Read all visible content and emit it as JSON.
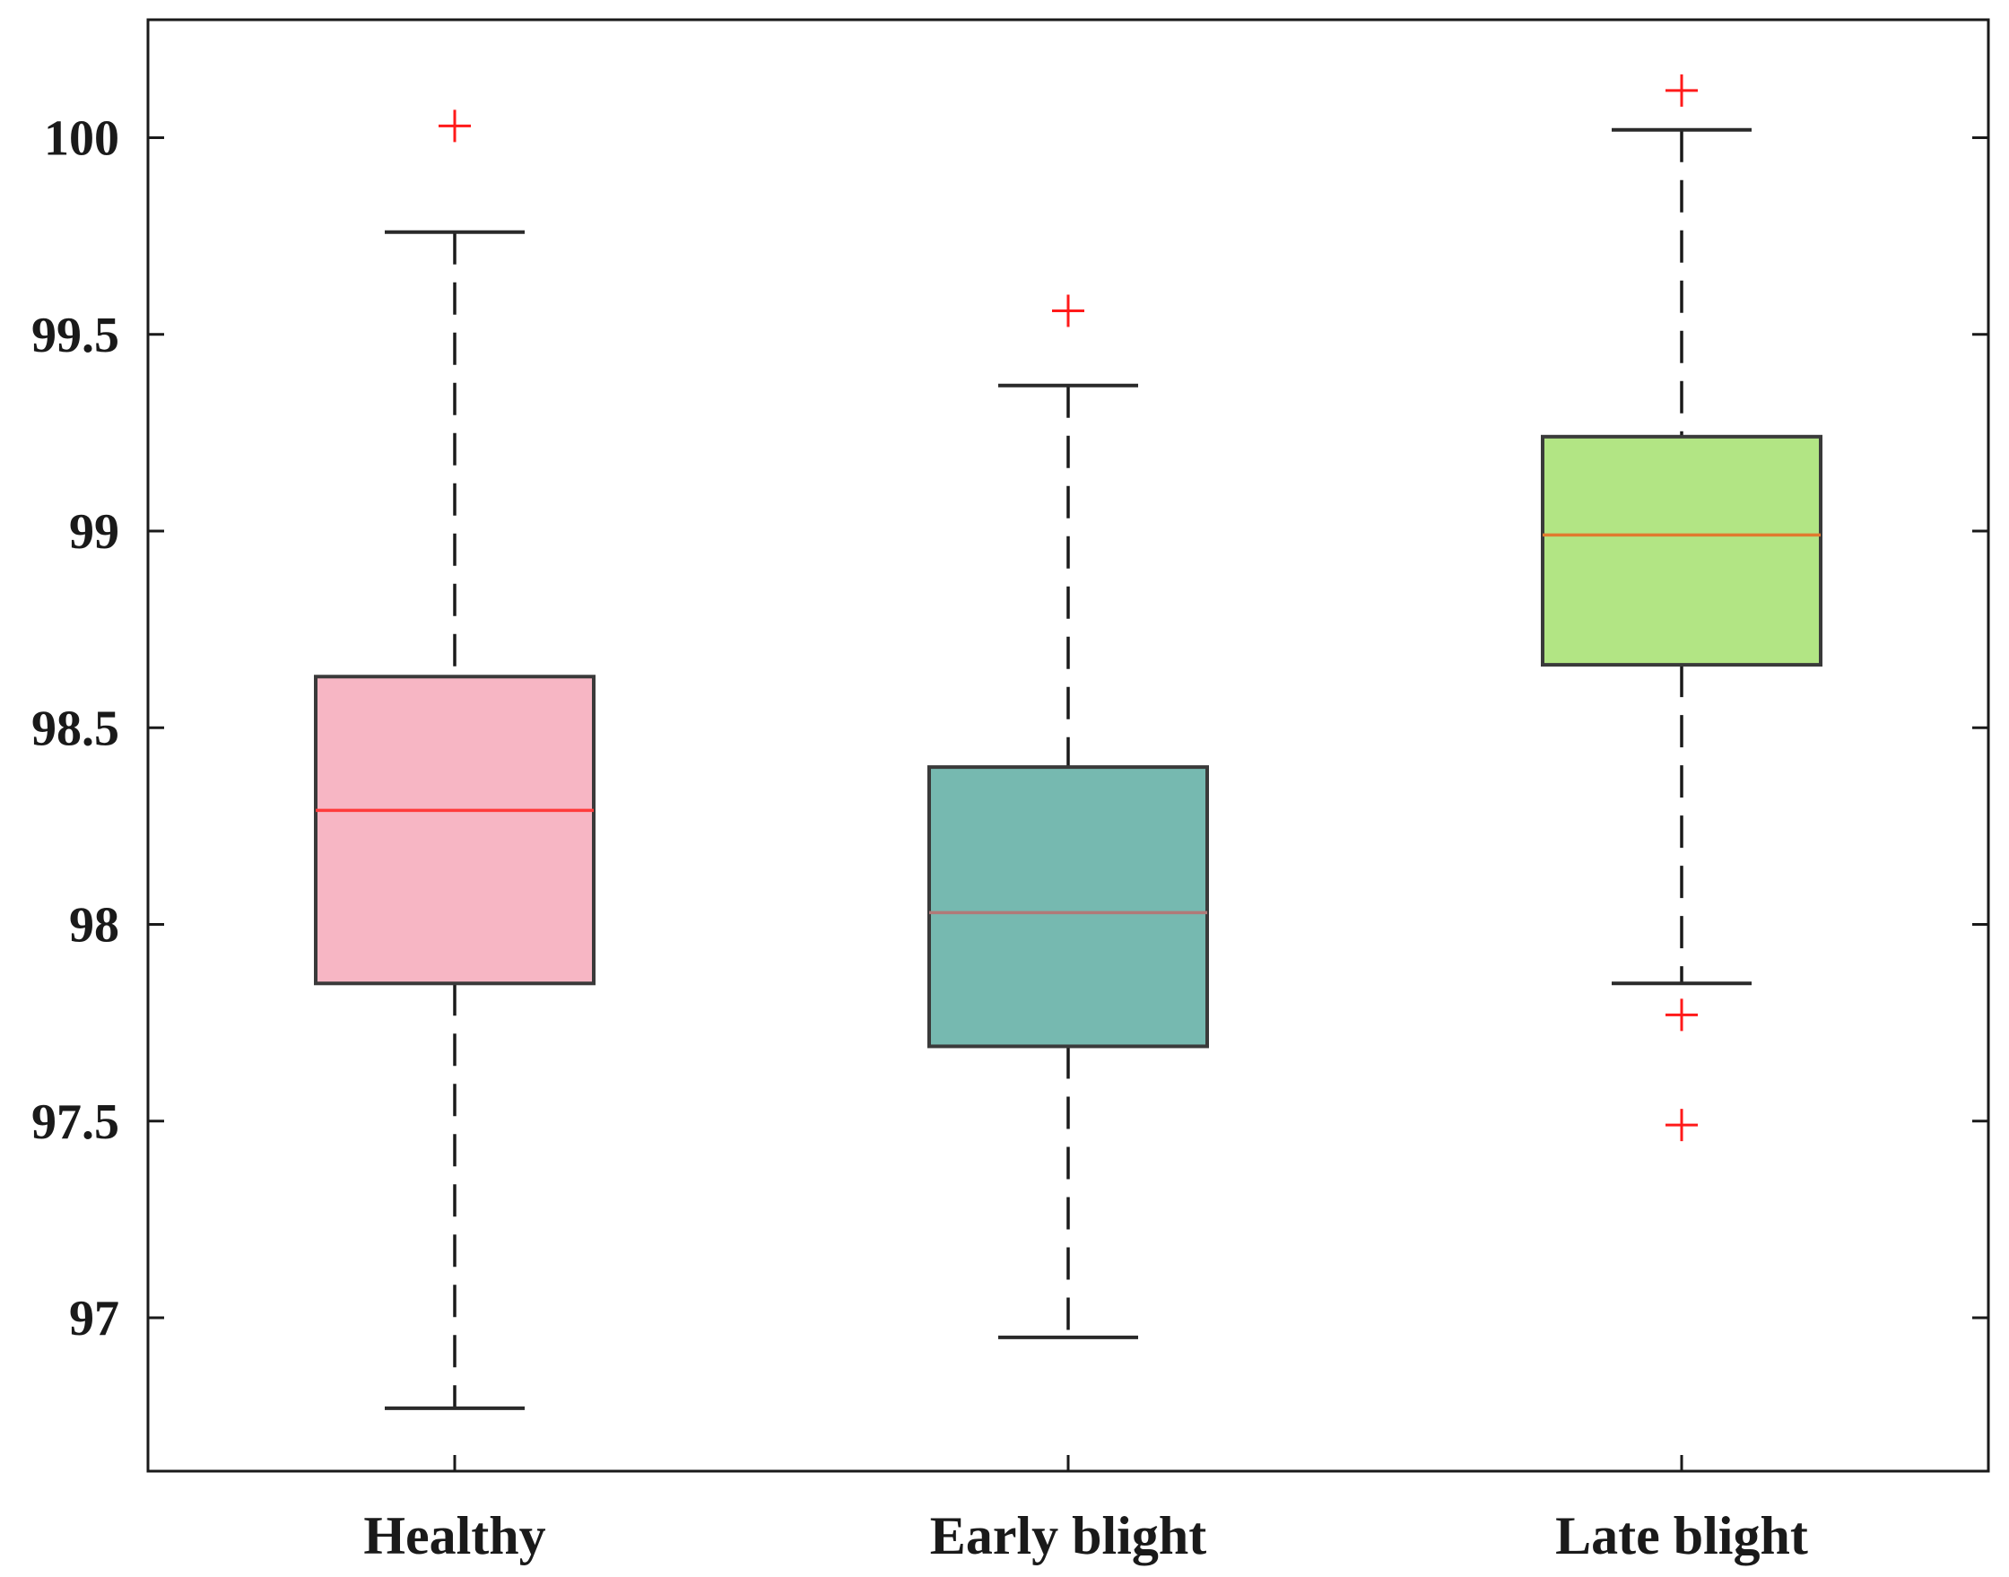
{
  "chart_data": {
    "type": "box",
    "title": "",
    "xlabel": "",
    "ylabel": "",
    "ylim": [
      96.61,
      100.3
    ],
    "yticks": [
      97,
      97.5,
      98,
      98.5,
      99,
      99.5,
      100
    ],
    "ytick_labels": [
      "97",
      "97.5",
      "98",
      "98.5",
      "99",
      "99.5",
      "100"
    ],
    "grid": false,
    "categories": [
      "Healthy",
      "Early blight",
      "Late blight"
    ],
    "series": [
      {
        "name": "Healthy",
        "whisker_low": 96.77,
        "q1": 97.85,
        "median": 98.29,
        "q3": 98.63,
        "whisker_high": 99.76,
        "outliers": [
          100.03
        ],
        "fill_color": "#f7b6c4",
        "median_color": "#ff3b3b"
      },
      {
        "name": "Early blight",
        "whisker_low": 96.95,
        "q1": 97.69,
        "median": 98.03,
        "q3": 98.4,
        "whisker_high": 99.37,
        "outliers": [
          99.56
        ],
        "fill_color": "#76b9b0",
        "median_color": "#b07a78"
      },
      {
        "name": "Late blight",
        "whisker_low": 97.85,
        "q1": 98.66,
        "median": 98.99,
        "q3": 99.24,
        "whisker_high": 100.02,
        "outliers": [
          100.12,
          97.77,
          97.49
        ],
        "fill_color": "#b2e584",
        "median_color": "#e07a2e"
      }
    ]
  }
}
